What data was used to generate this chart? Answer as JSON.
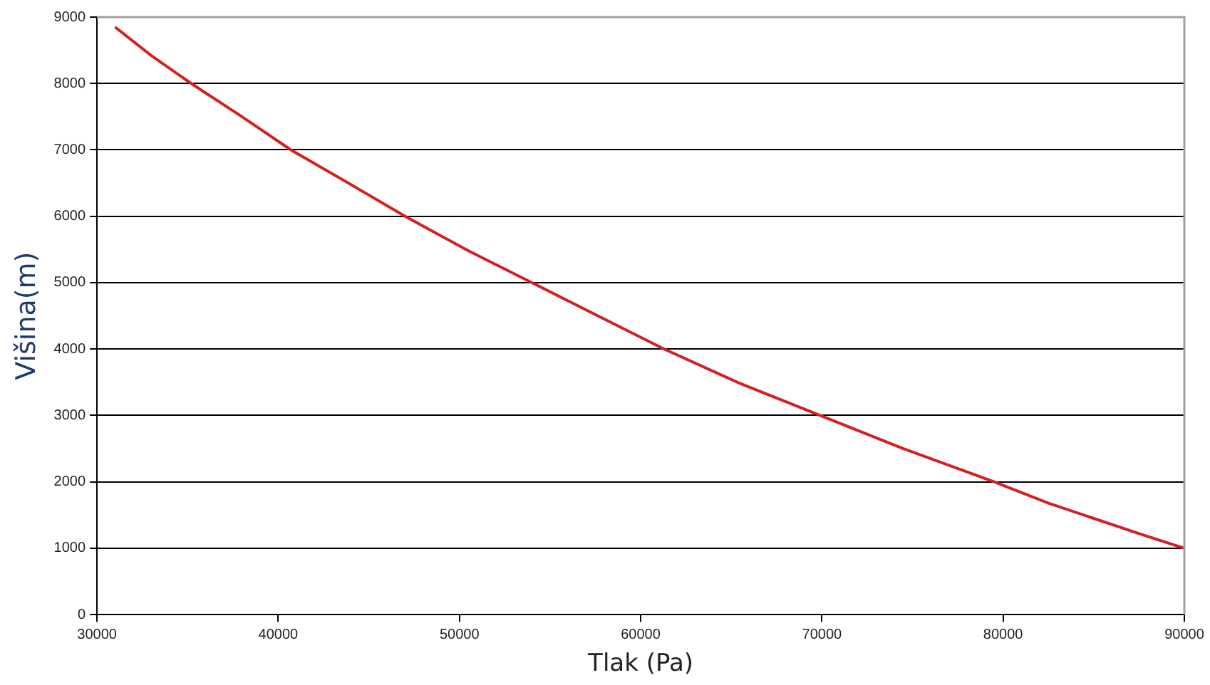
{
  "chart_data": {
    "type": "line",
    "xlabel": "Tlak (Pa)",
    "ylabel": "Višina(m)",
    "series": [
      {
        "color": "#d42020",
        "x": [
          31000,
          33000,
          35200,
          38000,
          40700,
          44000,
          47000,
          50500,
          54000,
          57500,
          61300,
          65500,
          69900,
          74500,
          79500,
          82500,
          85000,
          87500,
          90000
        ],
        "values": [
          8850,
          8420,
          8000,
          7500,
          7000,
          6480,
          6000,
          5480,
          5000,
          4520,
          4000,
          3480,
          3000,
          2500,
          2000,
          1680,
          1450,
          1220,
          1000
        ]
      }
    ],
    "xlim": [
      30000,
      90000
    ],
    "xticks": [
      30000,
      40000,
      50000,
      60000,
      70000,
      80000,
      90000
    ],
    "ylim": [
      0,
      9000
    ],
    "yticks": [
      0,
      1000,
      2000,
      3000,
      4000,
      5000,
      6000,
      7000,
      8000,
      9000
    ],
    "grid": "y",
    "legend": false,
    "marker": "none",
    "line_style": "solid"
  }
}
